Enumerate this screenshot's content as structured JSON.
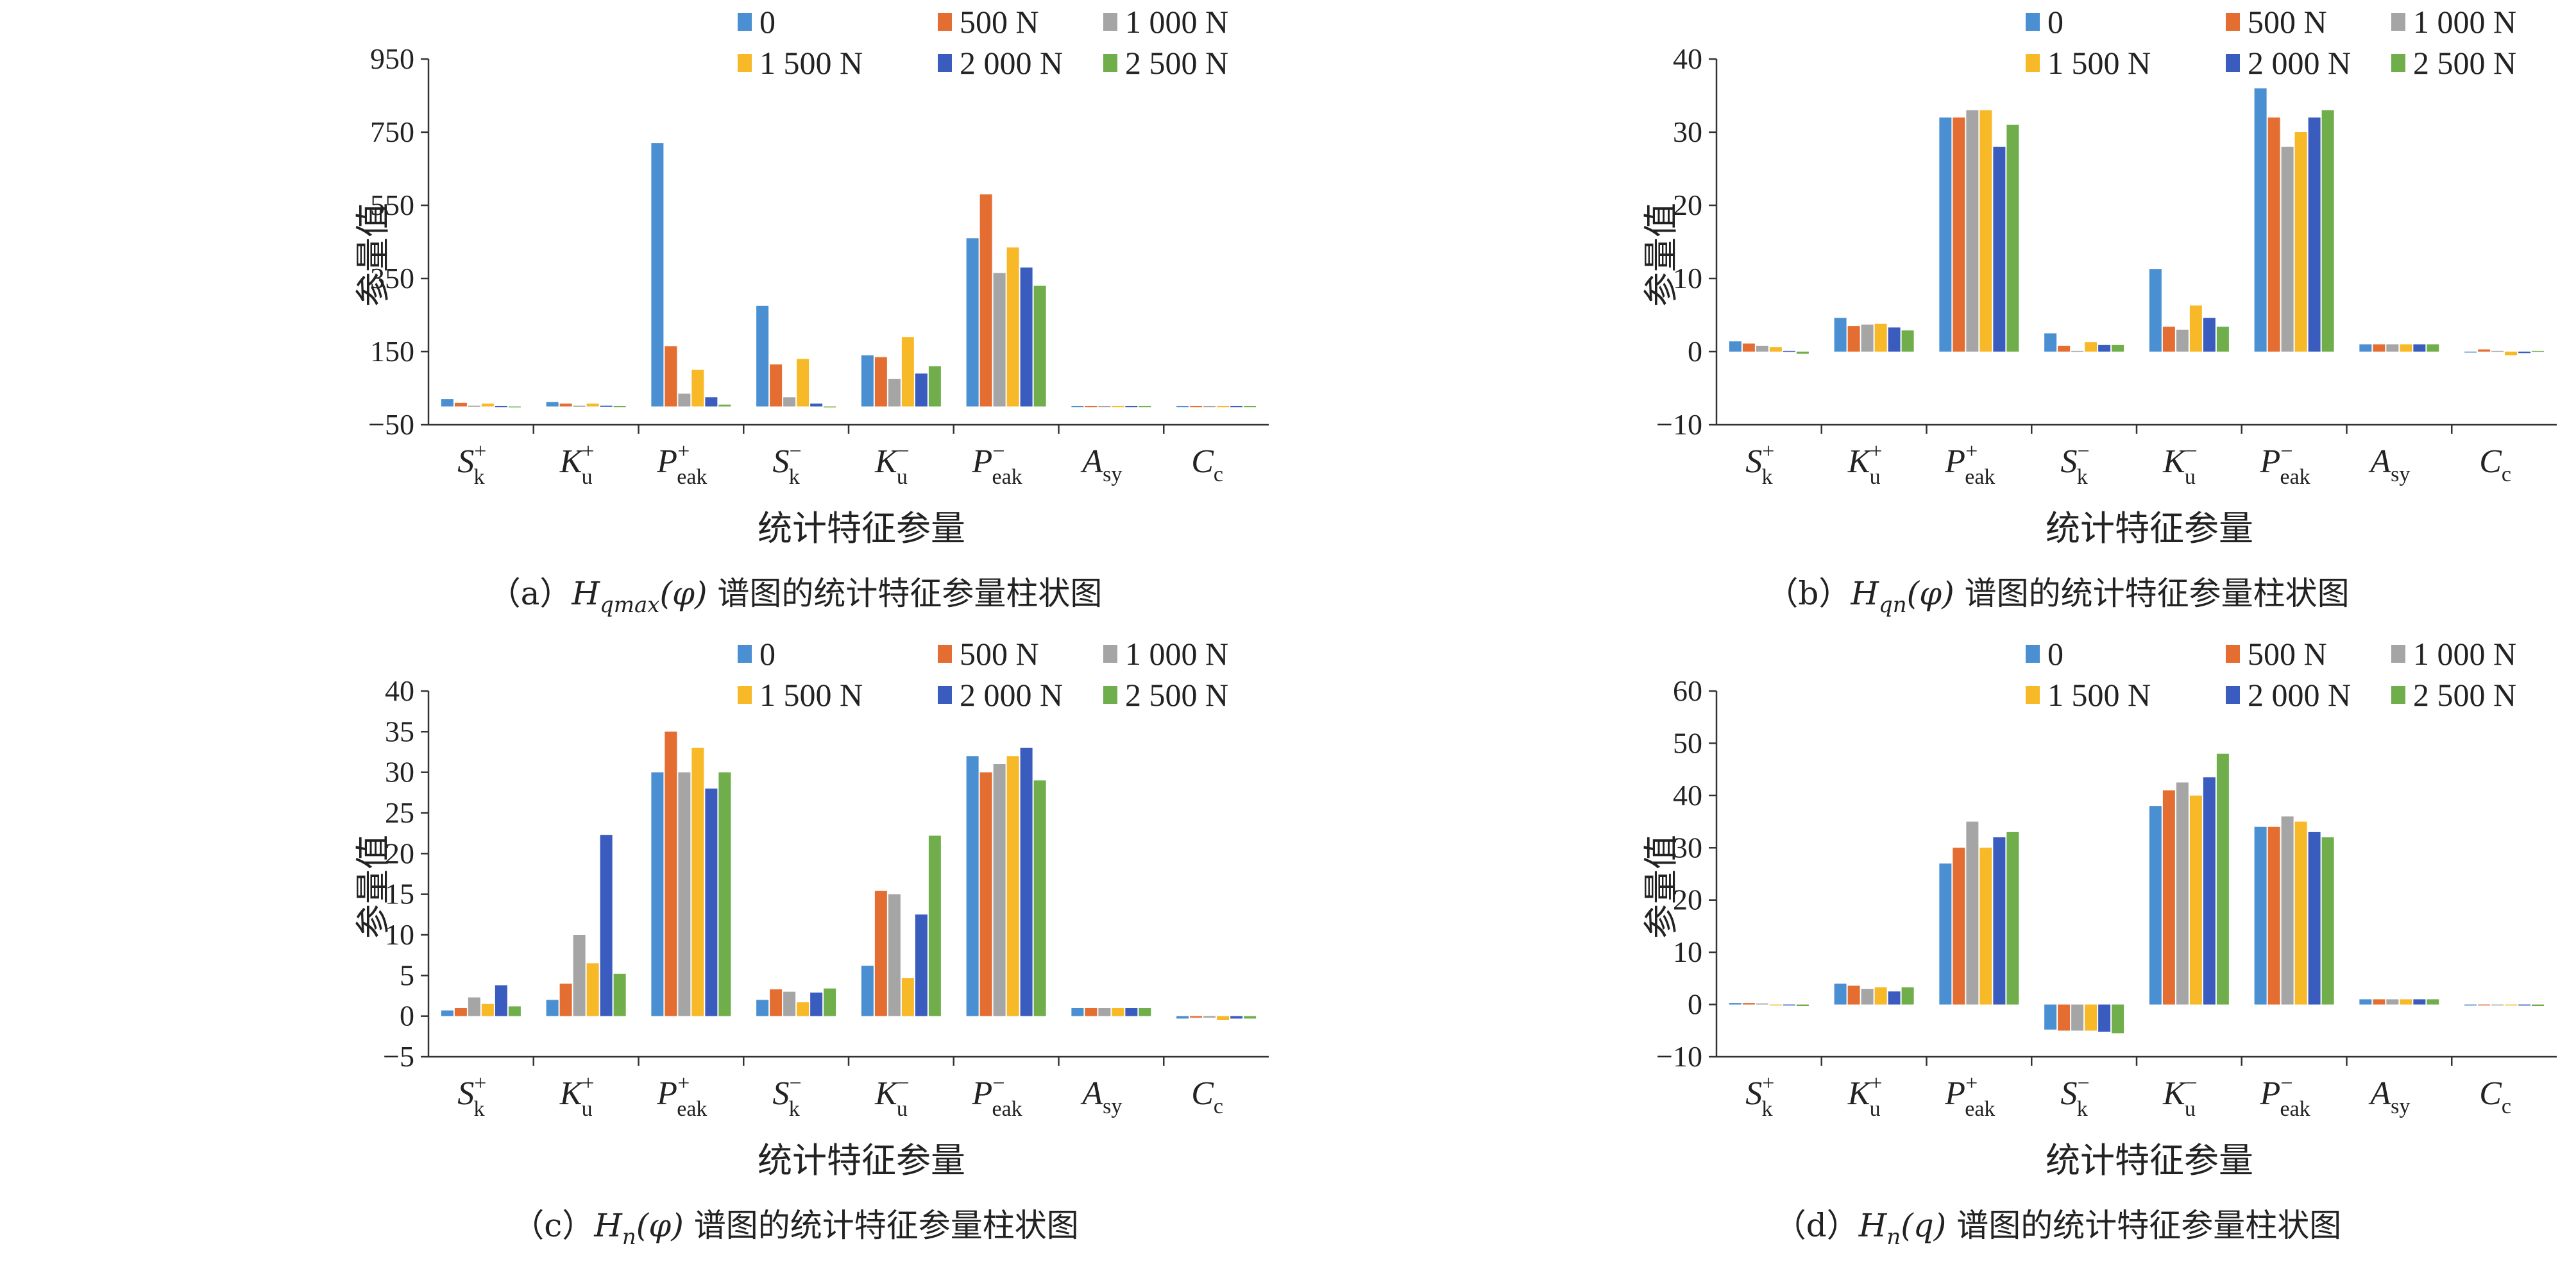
{
  "legend": [
    "0",
    "500 N",
    "1 000 N",
    "1 500 N",
    "2 000 N",
    "2 500 N"
  ],
  "colors": [
    "#4a8fd1",
    "#e46e31",
    "#a5a5a5",
    "#f8b928",
    "#3b5cbf",
    "#6fae4a"
  ],
  "categories": [
    {
      "base": "S",
      "sub": "k",
      "sup": "+"
    },
    {
      "base": "K",
      "sub": "u",
      "sup": "+"
    },
    {
      "base": "P",
      "sub": "eak",
      "sup": "+"
    },
    {
      "base": "S",
      "sub": "k",
      "sup": "−"
    },
    {
      "base": "K",
      "sub": "u",
      "sup": "−"
    },
    {
      "base": "P",
      "sub": "eak",
      "sup": "−"
    },
    {
      "base": "A",
      "sub": "sy",
      "sup": ""
    },
    {
      "base": "C",
      "sub": "c",
      "sup": ""
    }
  ],
  "xlabel": "统计特征参量",
  "ylabel": "参量值",
  "chart_data": [
    {
      "type": "bar",
      "caption": {
        "prefix": "（a）",
        "func": "H",
        "func_sub": "qmax",
        "arg": "(φ)",
        "suffix": " 谱图的统计特征参量柱状图"
      },
      "categories": [
        "S_k^+",
        "K_u^+",
        "P_eak^+",
        "S_k^-",
        "K_u^-",
        "P_eak^-",
        "A_sy",
        "C_c"
      ],
      "ylim": [
        -50,
        950
      ],
      "yticks": [
        -50,
        150,
        350,
        550,
        750,
        950
      ],
      "ytick_labels": [
        "−50",
        "150",
        "350",
        "550",
        "750",
        "950"
      ],
      "series": [
        {
          "name": "0",
          "values": [
            20,
            12,
            720,
            275,
            140,
            460,
            1,
            1
          ]
        },
        {
          "name": "500 N",
          "values": [
            10,
            8,
            165,
            115,
            135,
            580,
            1,
            1
          ]
        },
        {
          "name": "1 000 N",
          "values": [
            2,
            2,
            35,
            25,
            75,
            365,
            1,
            1
          ]
        },
        {
          "name": "1 500 N",
          "values": [
            8,
            8,
            100,
            130,
            190,
            435,
            1,
            1
          ]
        },
        {
          "name": "2 000 N",
          "values": [
            1,
            2,
            25,
            8,
            90,
            380,
            1,
            1
          ]
        },
        {
          "name": "2 500 N",
          "values": [
            -1,
            1,
            5,
            0,
            110,
            330,
            1,
            1
          ]
        }
      ]
    },
    {
      "type": "bar",
      "caption": {
        "prefix": "（b）",
        "func": "H",
        "func_sub": "qn",
        "arg": "(φ)",
        "suffix": " 谱图的统计特征参量柱状图"
      },
      "categories": [
        "S_k^+",
        "K_u^+",
        "P_eak^+",
        "S_k^-",
        "K_u^-",
        "P_eak^-",
        "A_sy",
        "C_c"
      ],
      "ylim": [
        -10,
        40
      ],
      "yticks": [
        -10,
        0,
        10,
        20,
        30,
        40
      ],
      "ytick_labels": [
        "−10",
        "0",
        "10",
        "20",
        "30",
        "40"
      ],
      "series": [
        {
          "name": "0",
          "values": [
            1.4,
            4.6,
            32,
            2.5,
            11.3,
            36,
            1,
            0
          ]
        },
        {
          "name": "500 N",
          "values": [
            1.1,
            3.5,
            32,
            0.8,
            3.4,
            32,
            1,
            0.3
          ]
        },
        {
          "name": "1 000 N",
          "values": [
            0.8,
            3.7,
            33,
            0.1,
            3.0,
            28,
            1,
            0.1
          ]
        },
        {
          "name": "1 500 N",
          "values": [
            0.6,
            3.8,
            33,
            1.3,
            6.3,
            30,
            1,
            -0.5
          ]
        },
        {
          "name": "2 000 N",
          "values": [
            0.1,
            3.3,
            28,
            0.9,
            4.6,
            32,
            1,
            -0.2
          ]
        },
        {
          "name": "2 500 N",
          "values": [
            -0.3,
            2.9,
            31,
            0.9,
            3.4,
            33,
            1,
            0.1
          ]
        }
      ]
    },
    {
      "type": "bar",
      "caption": {
        "prefix": "（c）",
        "func": "H",
        "func_sub": "n",
        "arg": "(φ)",
        "suffix": " 谱图的统计特征参量柱状图"
      },
      "categories": [
        "S_k^+",
        "K_u^+",
        "P_eak^+",
        "S_k^-",
        "K_u^-",
        "P_eak^-",
        "A_sy",
        "C_c"
      ],
      "ylim": [
        -5,
        40
      ],
      "yticks": [
        -5,
        0,
        5,
        10,
        15,
        20,
        25,
        30,
        35,
        40
      ],
      "ytick_labels": [
        "−5",
        "0",
        "5",
        "10",
        "15",
        "20",
        "25",
        "30",
        "35",
        "40"
      ],
      "series": [
        {
          "name": "0",
          "values": [
            0.7,
            2.0,
            30,
            2.0,
            6.2,
            32,
            1,
            -0.3
          ]
        },
        {
          "name": "500 N",
          "values": [
            1.0,
            4.0,
            35,
            3.3,
            15.4,
            30,
            1,
            -0.2
          ]
        },
        {
          "name": "1 000 N",
          "values": [
            2.3,
            10.0,
            30,
            3.0,
            15.0,
            31,
            1,
            -0.2
          ]
        },
        {
          "name": "1 500 N",
          "values": [
            1.5,
            6.5,
            33,
            1.7,
            4.7,
            32,
            1,
            -0.5
          ]
        },
        {
          "name": "2 000 N",
          "values": [
            3.8,
            22.3,
            28,
            2.9,
            12.5,
            33,
            1,
            -0.3
          ]
        },
        {
          "name": "2 500 N",
          "values": [
            1.2,
            5.2,
            30,
            3.4,
            22.2,
            29,
            1,
            -0.3
          ]
        }
      ]
    },
    {
      "type": "bar",
      "caption": {
        "prefix": "（d）",
        "func": "H",
        "func_sub": "n",
        "arg": "(q)",
        "suffix": " 谱图的统计特征参量柱状图"
      },
      "categories": [
        "S_k^+",
        "K_u^+",
        "P_eak^+",
        "S_k^-",
        "K_u^-",
        "P_eak^-",
        "A_sy",
        "C_c"
      ],
      "ylim": [
        -10,
        60
      ],
      "yticks": [
        -10,
        0,
        10,
        20,
        30,
        40,
        50,
        60
      ],
      "ytick_labels": [
        "−10",
        "0",
        "10",
        "20",
        "30",
        "40",
        "50",
        "60"
      ],
      "series": [
        {
          "name": "0",
          "values": [
            0.3,
            4.0,
            27,
            -4.8,
            38,
            34,
            1,
            -0.2
          ]
        },
        {
          "name": "500 N",
          "values": [
            0.3,
            3.6,
            30,
            -5.0,
            41,
            34,
            1,
            -0.1
          ]
        },
        {
          "name": "1 000 N",
          "values": [
            0.2,
            3.0,
            35,
            -5.0,
            42.5,
            36,
            1,
            -0.1
          ]
        },
        {
          "name": "1 500 N",
          "values": [
            0,
            3.3,
            30,
            -5.0,
            40,
            35,
            1,
            -0.1
          ]
        },
        {
          "name": "2 000 N",
          "values": [
            -0.1,
            2.5,
            32,
            -5.2,
            43.5,
            33,
            1,
            -0.2
          ]
        },
        {
          "name": "2 500 N",
          "values": [
            -0.3,
            3.3,
            33,
            -5.5,
            48,
            32,
            1,
            -0.3
          ]
        }
      ]
    }
  ]
}
